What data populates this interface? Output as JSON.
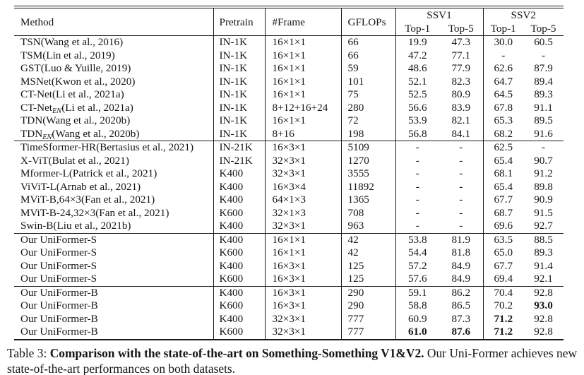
{
  "table": {
    "header": {
      "method": "Method",
      "pretrain": "Pretrain",
      "frame": "#Frame",
      "gflops": "GFLOPs",
      "ssv1": "SSV1",
      "ssv2": "SSV2",
      "top1": "Top-1",
      "top5": "Top-5"
    },
    "groups": [
      {
        "rows": [
          {
            "method": "TSN(Wang et al., 2016)",
            "pretrain": "IN-1K",
            "frame": "16×1×1",
            "gflops": "66",
            "ssv1_top1": "19.9",
            "ssv1_top5": "47.3",
            "ssv2_top1": "30.0",
            "ssv2_top5": "60.5",
            "bold": []
          },
          {
            "method": "TSM(Lin et al., 2019)",
            "pretrain": "IN-1K",
            "frame": "16×1×1",
            "gflops": "66",
            "ssv1_top1": "47.2",
            "ssv1_top5": "77.1",
            "ssv2_top1": "-",
            "ssv2_top5": "-",
            "bold": []
          },
          {
            "method": "GST(Luo & Yuille, 2019)",
            "pretrain": "IN-1K",
            "frame": "16×1×1",
            "gflops": "59",
            "ssv1_top1": "48.6",
            "ssv1_top5": "77.9",
            "ssv2_top1": "62.6",
            "ssv2_top5": "87.9",
            "bold": []
          },
          {
            "method": "MSNet(Kwon et al., 2020)",
            "pretrain": "IN-1K",
            "frame": "16×1×1",
            "gflops": "101",
            "ssv1_top1": "52.1",
            "ssv1_top5": "82.3",
            "ssv2_top1": "64.7",
            "ssv2_top5": "89.4",
            "bold": []
          },
          {
            "method": "CT-Net(Li et al., 2021a)",
            "pretrain": "IN-1K",
            "frame": "16×1×1",
            "gflops": "75",
            "ssv1_top1": "52.5",
            "ssv1_top5": "80.9",
            "ssv2_top1": "64.5",
            "ssv2_top5": "89.3",
            "bold": []
          },
          {
            "method": "CT-Net_{EN}(Li et al., 2021a)",
            "pretrain": "IN-1K",
            "frame": "8+12+16+24",
            "gflops": "280",
            "ssv1_top1": "56.6",
            "ssv1_top5": "83.9",
            "ssv2_top1": "67.8",
            "ssv2_top5": "91.1",
            "bold": []
          },
          {
            "method": "TDN(Wang et al., 2020b)",
            "pretrain": "IN-1K",
            "frame": "16×1×1",
            "gflops": "72",
            "ssv1_top1": "53.9",
            "ssv1_top5": "82.1",
            "ssv2_top1": "65.3",
            "ssv2_top5": "89.5",
            "bold": []
          },
          {
            "method": "TDN_{EN}(Wang et al., 2020b)",
            "pretrain": "IN-1K",
            "frame": "8+16",
            "gflops": "198",
            "ssv1_top1": "56.8",
            "ssv1_top5": "84.1",
            "ssv2_top1": "68.2",
            "ssv2_top5": "91.6",
            "bold": []
          }
        ]
      },
      {
        "rows": [
          {
            "method": "TimeSformer-HR(Bertasius et al., 2021)",
            "pretrain": "IN-21K",
            "frame": "16×3×1",
            "gflops": "5109",
            "ssv1_top1": "-",
            "ssv1_top5": "-",
            "ssv2_top1": "62.5",
            "ssv2_top5": "-",
            "bold": []
          },
          {
            "method": "X-ViT(Bulat et al., 2021)",
            "pretrain": "IN-21K",
            "frame": "32×3×1",
            "gflops": "1270",
            "ssv1_top1": "-",
            "ssv1_top5": "-",
            "ssv2_top1": "65.4",
            "ssv2_top5": "90.7",
            "bold": []
          },
          {
            "method": "Mformer-L(Patrick et al., 2021)",
            "pretrain": "K400",
            "frame": "32×3×1",
            "gflops": "3555",
            "ssv1_top1": "-",
            "ssv1_top5": "-",
            "ssv2_top1": "68.1",
            "ssv2_top5": "91.2",
            "bold": []
          },
          {
            "method": "ViViT-L(Arnab et al., 2021)",
            "pretrain": "K400",
            "frame": "16×3×4",
            "gflops": "11892",
            "ssv1_top1": "-",
            "ssv1_top5": "-",
            "ssv2_top1": "65.4",
            "ssv2_top5": "89.8",
            "bold": []
          },
          {
            "method": "MViT-B,64×3(Fan et al., 2021)",
            "pretrain": "K400",
            "frame": "64×1×3",
            "gflops": "1365",
            "ssv1_top1": "-",
            "ssv1_top5": "-",
            "ssv2_top1": "67.7",
            "ssv2_top5": "90.9",
            "bold": []
          },
          {
            "method": "MViT-B-24,32×3(Fan et al., 2021)",
            "pretrain": "K600",
            "frame": "32×1×3",
            "gflops": "708",
            "ssv1_top1": "-",
            "ssv1_top5": "-",
            "ssv2_top1": "68.7",
            "ssv2_top5": "91.5",
            "bold": []
          },
          {
            "method": "Swin-B(Liu et al., 2021b)",
            "pretrain": "K400",
            "frame": "32×3×1",
            "gflops": "963",
            "ssv1_top1": "-",
            "ssv1_top5": "-",
            "ssv2_top1": "69.6",
            "ssv2_top5": "92.7",
            "bold": []
          }
        ]
      },
      {
        "rows": [
          {
            "method": "Our UniFormer-S",
            "pretrain": "K400",
            "frame": "16×1×1",
            "gflops": "42",
            "ssv1_top1": "53.8",
            "ssv1_top5": "81.9",
            "ssv2_top1": "63.5",
            "ssv2_top5": "88.5",
            "bold": []
          },
          {
            "method": "Our UniFormer-S",
            "pretrain": "K600",
            "frame": "16×1×1",
            "gflops": "42",
            "ssv1_top1": "54.4",
            "ssv1_top5": "81.8",
            "ssv2_top1": "65.0",
            "ssv2_top5": "89.3",
            "bold": []
          },
          {
            "method": "Our UniFormer-S",
            "pretrain": "K400",
            "frame": "16×3×1",
            "gflops": "125",
            "ssv1_top1": "57.2",
            "ssv1_top5": "84.9",
            "ssv2_top1": "67.7",
            "ssv2_top5": "91.4",
            "bold": []
          },
          {
            "method": "Our UniFormer-S",
            "pretrain": "K600",
            "frame": "16×3×1",
            "gflops": "125",
            "ssv1_top1": "57.6",
            "ssv1_top5": "84.9",
            "ssv2_top1": "69.4",
            "ssv2_top5": "92.1",
            "bold": []
          }
        ]
      },
      {
        "rows": [
          {
            "method": "Our UniFormer-B",
            "pretrain": "K400",
            "frame": "16×3×1",
            "gflops": "290",
            "ssv1_top1": "59.1",
            "ssv1_top5": "86.2",
            "ssv2_top1": "70.4",
            "ssv2_top5": "92.8",
            "bold": []
          },
          {
            "method": "Our UniFormer-B",
            "pretrain": "K600",
            "frame": "16×3×1",
            "gflops": "290",
            "ssv1_top1": "58.8",
            "ssv1_top5": "86.5",
            "ssv2_top1": "70.2",
            "ssv2_top5": "93.0",
            "bold": [
              "ssv2_top5"
            ]
          },
          {
            "method": "Our UniFormer-B",
            "pretrain": "K400",
            "frame": "32×3×1",
            "gflops": "777",
            "ssv1_top1": "60.9",
            "ssv1_top5": "87.3",
            "ssv2_top1": "71.2",
            "ssv2_top5": "92.8",
            "bold": [
              "ssv2_top1"
            ]
          },
          {
            "method": "Our UniFormer-B",
            "pretrain": "K600",
            "frame": "32×3×1",
            "gflops": "777",
            "ssv1_top1": "61.0",
            "ssv1_top5": "87.6",
            "ssv2_top1": "71.2",
            "ssv2_top5": "92.8",
            "bold": [
              "ssv1_top1",
              "ssv1_top5",
              "ssv2_top1"
            ]
          }
        ]
      }
    ]
  },
  "caption": {
    "prefix": "Table 3:",
    "bold": "Comparison with the state-of-the-art on Something-Something V1&V2.",
    "rest": "Our Uni-Former achieves new state-of-the-art performances on both datasets."
  }
}
